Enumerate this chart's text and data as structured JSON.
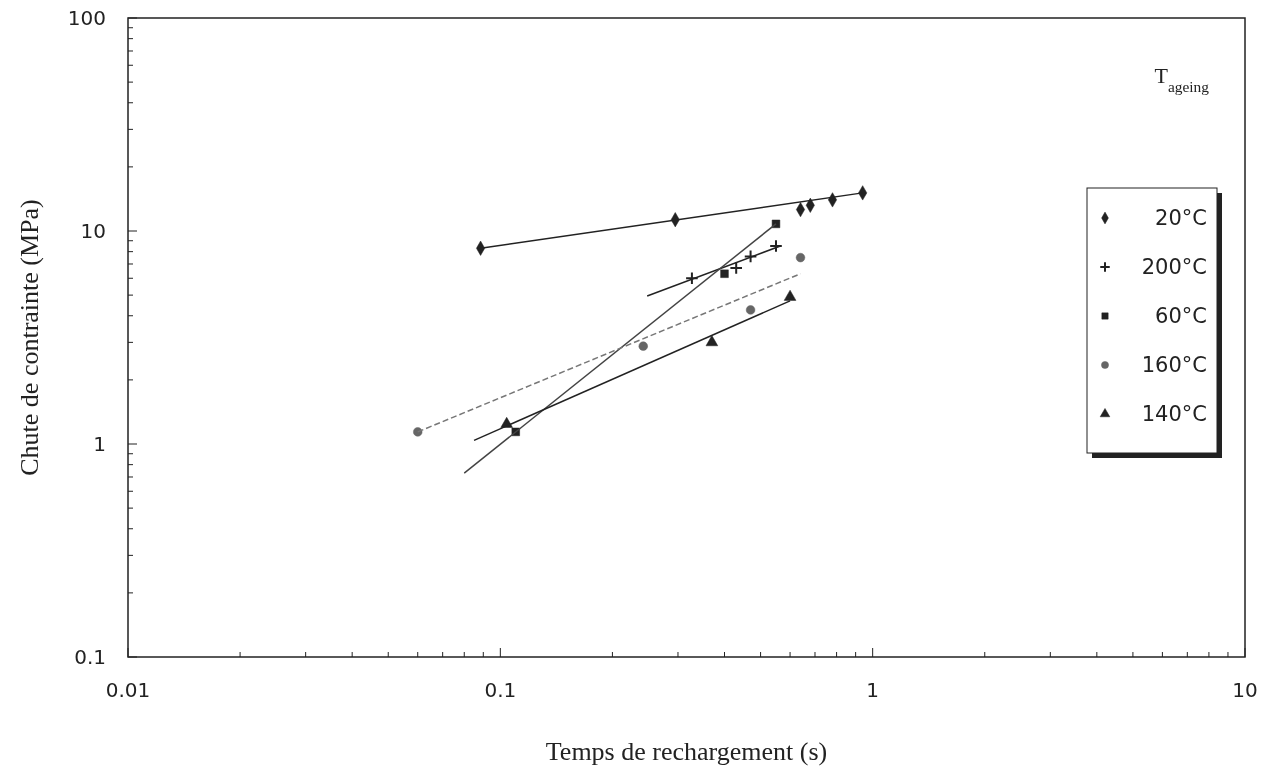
{
  "chart_data": {
    "type": "scatter",
    "xlabel": "Temps de rechargement (s)",
    "ylabel": "Chute de contrainte (MPa)",
    "legend_title": "T$_{ageing}$",
    "log": "xy",
    "grid": false,
    "legend": "right",
    "xlim": [
      0.01,
      10
    ],
    "ylim": [
      0.1,
      100
    ],
    "xticks": [
      0.01,
      {
        "value": 0.02,
        "label": null
      },
      {
        "value": 0.03,
        "label": null
      },
      {
        "value": 0.04,
        "label": null
      },
      {
        "value": 0.05,
        "label": null
      },
      {
        "value": 0.06,
        "label": null
      },
      {
        "value": 0.07,
        "label": null
      },
      {
        "value": 0.08,
        "label": null
      },
      {
        "value": 0.09,
        "label": null
      },
      0.1,
      {
        "value": 0.2,
        "label": null
      },
      {
        "value": 0.3,
        "label": null
      },
      {
        "value": 0.4,
        "label": null
      },
      {
        "value": 0.5,
        "label": null
      },
      {
        "value": 0.6,
        "label": null
      },
      {
        "value": 0.7,
        "label": null
      },
      {
        "value": 0.8,
        "label": null
      },
      {
        "value": 0.9,
        "label": null
      },
      1,
      {
        "value": 2,
        "label": null
      },
      {
        "value": 3,
        "label": null
      },
      {
        "value": 4,
        "label": null
      },
      {
        "value": 5,
        "label": null
      },
      {
        "value": 6,
        "label": null
      },
      {
        "value": 7,
        "label": null
      },
      {
        "value": 8,
        "label": null
      },
      {
        "value": 9,
        "label": null
      },
      10
    ],
    "yticks": [
      0.1,
      {
        "value": 0.2,
        "label": null
      },
      {
        "value": 0.3,
        "label": null
      },
      {
        "value": 0.4,
        "label": null
      },
      {
        "value": 0.5,
        "label": null
      },
      {
        "value": 0.6,
        "label": null
      },
      {
        "value": 0.7,
        "label": null
      },
      {
        "value": 0.8,
        "label": null
      },
      {
        "value": 0.9,
        "label": null
      },
      1,
      {
        "value": 2,
        "label": null
      },
      {
        "value": 3,
        "label": null
      },
      {
        "value": 4,
        "label": null
      },
      {
        "value": 5,
        "label": null
      },
      {
        "value": 6,
        "label": null
      },
      {
        "value": 7,
        "label": null
      },
      {
        "value": 8,
        "label": null
      },
      {
        "value": 9,
        "label": null
      },
      10,
      {
        "value": 20,
        "label": null
      },
      {
        "value": 30,
        "label": null
      },
      {
        "value": 40,
        "label": null
      },
      {
        "value": 50,
        "label": null
      },
      {
        "value": 60,
        "label": null
      },
      {
        "value": 70,
        "label": null
      },
      {
        "value": 80,
        "label": null
      },
      {
        "value": 90,
        "label": null
      },
      100
    ],
    "series": [
      {
        "name": "20°C",
        "color": "#222222",
        "marker": "diamond",
        "x": [
          0.0885,
          0.295,
          0.64,
          0.68,
          0.78,
          0.94
        ],
        "values": [
          8.3,
          11.3,
          12.6,
          13.2,
          14.0,
          15.1
        ]
      },
      {
        "name": "200°C",
        "color": "#222222",
        "marker": "cross",
        "x": [
          0.327,
          0.43,
          0.47,
          0.55
        ],
        "values": [
          6.0,
          6.7,
          7.6,
          8.5
        ]
      },
      {
        "name": "60°C",
        "color": "#222222",
        "marker": "square",
        "x": [
          0.11,
          0.4,
          0.55
        ],
        "values": [
          1.14,
          6.3,
          10.8
        ]
      },
      {
        "name": "160°C",
        "color": "#666666",
        "marker": "circle",
        "x": [
          0.06,
          0.242,
          0.47,
          0.64
        ],
        "values": [
          1.14,
          2.88,
          4.26,
          7.5
        ]
      },
      {
        "name": "140°C",
        "color": "#222222",
        "marker": "triangle",
        "x": [
          0.104,
          0.37,
          0.6
        ],
        "values": [
          1.24,
          3.0,
          4.9
        ]
      },
      {
        "type": "line",
        "color": "#222222",
        "marker": "none",
        "line_style": "solid",
        "x": [
          0.0885,
          0.94
        ],
        "values": [
          8.3,
          15.1
        ]
      },
      {
        "type": "line",
        "color": "#222222",
        "marker": "none",
        "line_style": "solid",
        "x": [
          0.248,
          0.565
        ],
        "values": [
          4.95,
          8.5
        ]
      },
      {
        "type": "line",
        "color": "#444444",
        "marker": "none",
        "line_style": "solid",
        "x": [
          0.08,
          0.55
        ],
        "values": [
          0.73,
          10.8
        ]
      },
      {
        "type": "line",
        "color": "#777777",
        "marker": "none",
        "line_style": "dashed",
        "x": [
          0.06,
          0.64
        ],
        "values": [
          1.14,
          6.3
        ]
      },
      {
        "type": "line",
        "color": "#222222",
        "marker": "none",
        "line_style": "solid",
        "x": [
          0.085,
          0.6
        ],
        "values": [
          1.04,
          4.7
        ]
      }
    ]
  }
}
